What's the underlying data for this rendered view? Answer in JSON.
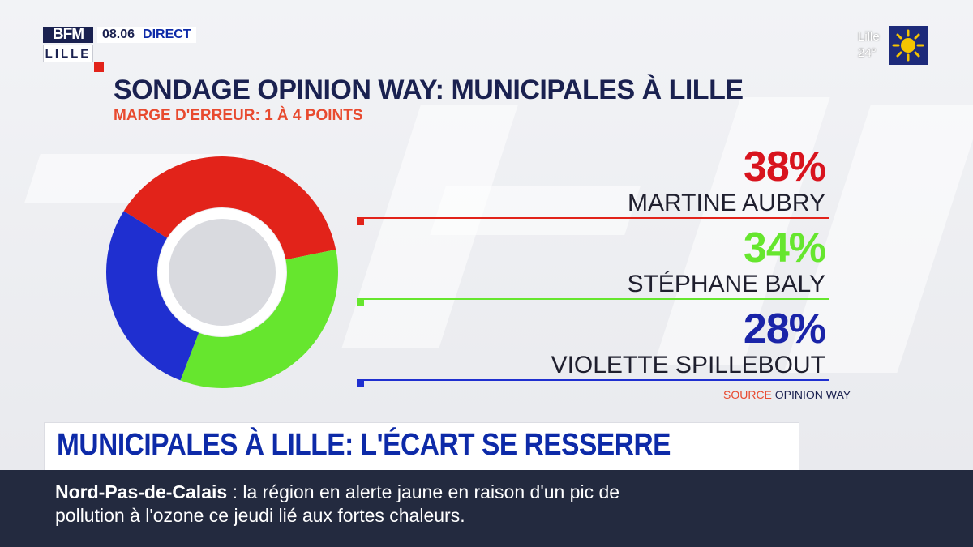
{
  "channel": {
    "logo_top": "BFM",
    "logo_city": "LILLE",
    "time": "08.06",
    "live_label": "DIRECT"
  },
  "weather": {
    "city": "Lille",
    "temperature": "24°",
    "icon": "sun-icon"
  },
  "chart_data": {
    "type": "pie",
    "style": "donut",
    "title": "SONDAGE OPINION WAY: MUNICIPALES À LILLE",
    "subtitle": "MARGE D'ERREUR: 1 À 4 POINTS",
    "categories": [
      "MARTINE AUBRY",
      "STÉPHANE BALY",
      "VIOLETTE SPILLEBOUT"
    ],
    "values": [
      38,
      34,
      28
    ],
    "value_labels": [
      "38%",
      "34%",
      "28%"
    ],
    "colors": [
      "#e2231a",
      "#66e62e",
      "#1f2fd0"
    ],
    "label_colors": [
      "#d8141e",
      "#66e62e",
      "#1a24a8"
    ],
    "source_label": "SOURCE",
    "source": "OPINION WAY"
  },
  "headline": "MUNICIPALES À LILLE: L'ÉCART SE RESSERRE",
  "ticker": {
    "region": "Nord-Pas-de-Calais",
    "separator": ":",
    "line1": "la région en alerte jaune en raison d'un pic de",
    "line2": "pollution à l'ozone ce jeudi lié aux fortes chaleurs."
  }
}
